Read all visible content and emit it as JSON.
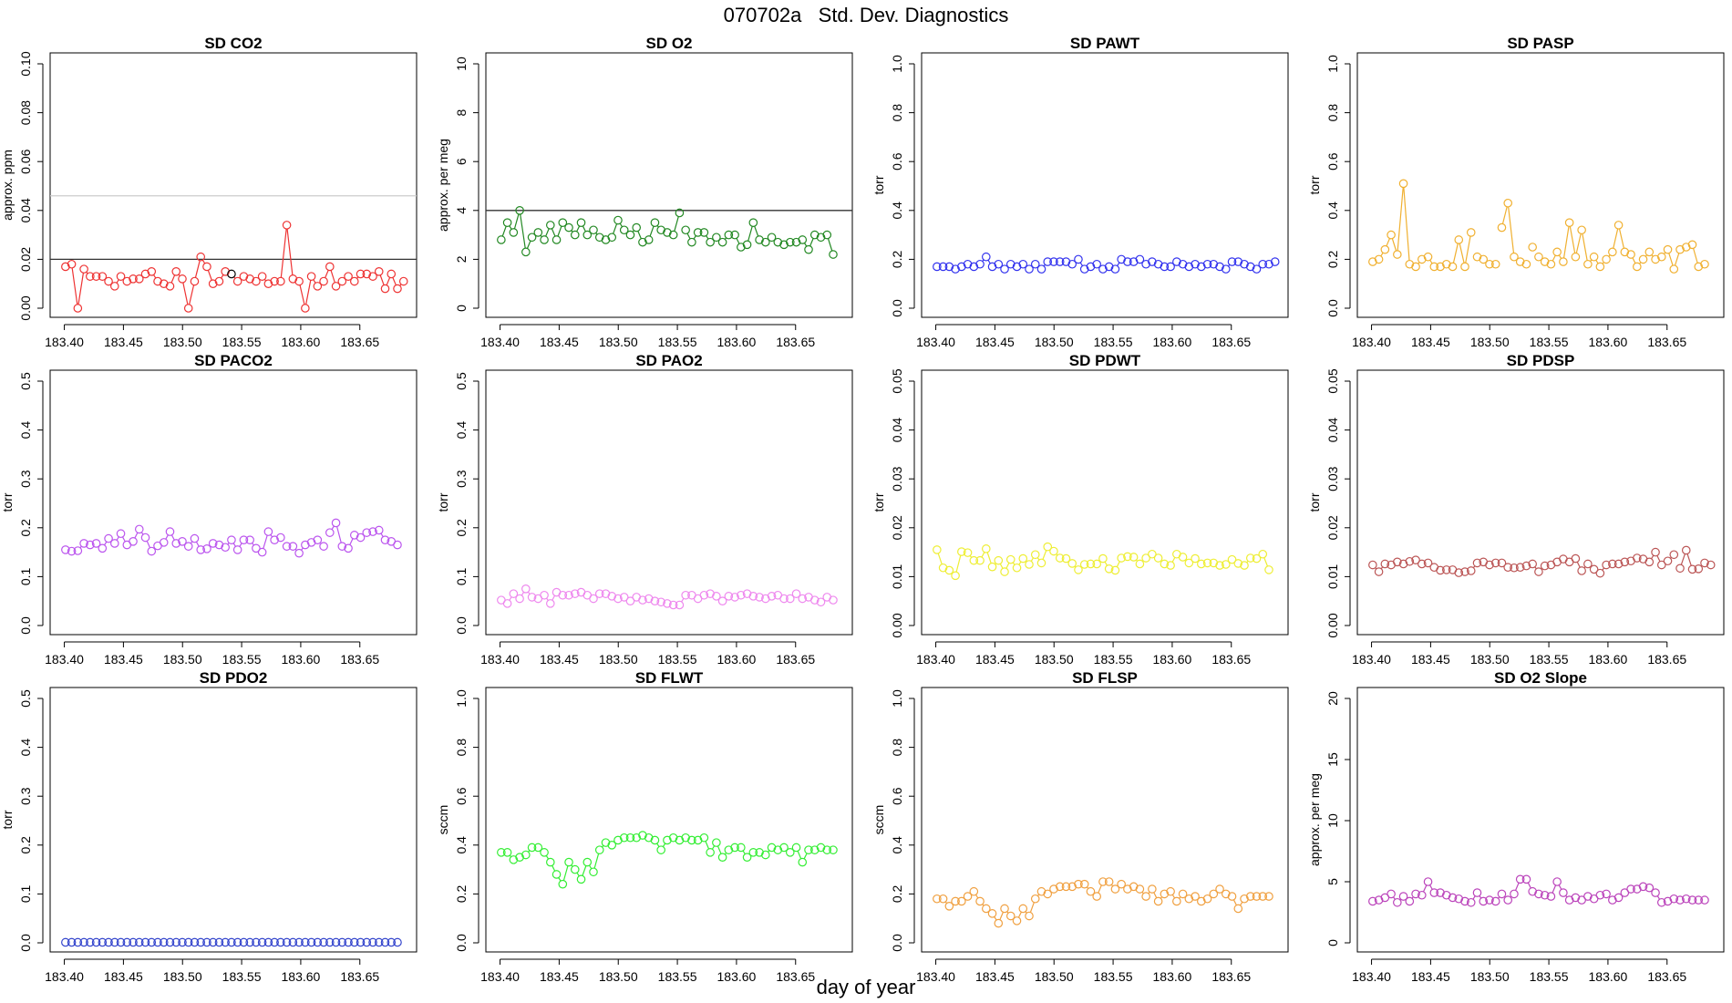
{
  "page": {
    "title": "070702a   Std. Dev. Diagnostics",
    "xlabel": "day of year"
  },
  "x_ticks": [
    183.4,
    183.45,
    183.5,
    183.55,
    183.6,
    183.65
  ],
  "x_tick_labels": [
    "183.40",
    "183.45",
    "183.50",
    "183.55",
    "183.60",
    "183.65"
  ],
  "chart_data": [
    {
      "type": "line",
      "title": "SD CO2",
      "ylabel": "approx. ppm",
      "ylim": [
        0,
        0.1
      ],
      "yticks": [
        0,
        0.02,
        0.04,
        0.06,
        0.08,
        0.1
      ],
      "ytick_labels": [
        "0.00",
        "0.02",
        "0.04",
        "0.06",
        "0.08",
        "0.10"
      ],
      "color": "#ee3333",
      "hlines": [
        {
          "y": 0.02,
          "color": "#333333"
        },
        {
          "y": 0.046,
          "color": "#cccccc"
        }
      ],
      "highlight": {
        "index": 27,
        "color": "#000000"
      },
      "gaps": [
        26
      ],
      "x_start": 183.401,
      "x_step": 0.0052,
      "values": [
        0.017,
        0.018,
        0.0,
        0.016,
        0.013,
        0.013,
        0.013,
        0.011,
        0.009,
        0.013,
        0.011,
        0.012,
        0.012,
        0.014,
        0.015,
        0.011,
        0.01,
        0.009,
        0.015,
        0.012,
        0.0,
        0.011,
        0.021,
        0.017,
        0.01,
        0.011,
        0.015,
        0.014,
        0.011,
        0.013,
        0.012,
        0.011,
        0.013,
        0.01,
        0.011,
        0.011,
        0.034,
        0.012,
        0.011,
        0.0,
        0.013,
        0.009,
        0.011,
        0.017,
        0.009,
        0.011,
        0.013,
        0.011,
        0.014,
        0.014,
        0.013,
        0.015,
        0.008,
        0.014,
        0.008,
        0.011
      ]
    },
    {
      "type": "line",
      "title": "SD O2",
      "ylabel": "approx. per meg",
      "ylim": [
        0,
        10
      ],
      "yticks": [
        0,
        2,
        4,
        6,
        8,
        10
      ],
      "ytick_labels": [
        "0",
        "2",
        "4",
        "6",
        "8",
        "10"
      ],
      "color": "#228822",
      "hlines": [
        {
          "y": 4,
          "color": "#333333"
        }
      ],
      "gaps": [
        29,
        45
      ],
      "x_start": 183.401,
      "x_step": 0.0052,
      "values": [
        2.8,
        3.5,
        3.1,
        4.0,
        2.3,
        2.9,
        3.1,
        2.8,
        3.4,
        2.8,
        3.5,
        3.3,
        3.0,
        3.5,
        3.0,
        3.2,
        2.9,
        2.8,
        2.9,
        3.6,
        3.2,
        3.0,
        3.3,
        2.7,
        2.8,
        3.5,
        3.2,
        3.1,
        3.0,
        3.9,
        3.2,
        2.7,
        3.1,
        3.1,
        2.7,
        2.9,
        2.7,
        3.0,
        3.0,
        2.5,
        2.6,
        3.5,
        2.8,
        2.7,
        2.9,
        2.7,
        2.6,
        2.7,
        2.7,
        2.8,
        2.4,
        3.0,
        2.9,
        3.0,
        2.2
      ]
    },
    {
      "type": "line",
      "title": "SD PAWT",
      "ylabel": "torr",
      "ylim": [
        0,
        1.0
      ],
      "yticks": [
        0,
        0.2,
        0.4,
        0.6,
        0.8,
        1.0
      ],
      "ytick_labels": [
        "0.0",
        "0.2",
        "0.4",
        "0.6",
        "0.8",
        "1.0"
      ],
      "color": "#3333ee",
      "hlines": [],
      "gaps": [],
      "x_start": 183.401,
      "x_step": 0.0052,
      "values": [
        0.17,
        0.17,
        0.17,
        0.16,
        0.17,
        0.18,
        0.17,
        0.18,
        0.21,
        0.17,
        0.18,
        0.16,
        0.18,
        0.17,
        0.18,
        0.16,
        0.18,
        0.16,
        0.19,
        0.19,
        0.19,
        0.19,
        0.18,
        0.2,
        0.16,
        0.17,
        0.18,
        0.16,
        0.17,
        0.16,
        0.2,
        0.19,
        0.19,
        0.2,
        0.18,
        0.19,
        0.18,
        0.17,
        0.17,
        0.19,
        0.18,
        0.17,
        0.18,
        0.17,
        0.18,
        0.18,
        0.17,
        0.16,
        0.19,
        0.19,
        0.18,
        0.17,
        0.16,
        0.18,
        0.18,
        0.19
      ]
    },
    {
      "type": "line",
      "title": "SD PASP",
      "ylabel": "torr",
      "ylim": [
        0,
        1.0
      ],
      "yticks": [
        0,
        0.2,
        0.4,
        0.6,
        0.8,
        1.0
      ],
      "ytick_labels": [
        "0.0",
        "0.2",
        "0.4",
        "0.6",
        "0.8",
        "1.0"
      ],
      "color": "#f0b030",
      "hlines": [],
      "gaps": [
        16,
        17,
        20,
        24,
        25,
        26,
        46
      ],
      "x_start": 183.401,
      "x_step": 0.0052,
      "values": [
        0.19,
        0.2,
        0.24,
        0.3,
        0.22,
        0.51,
        0.18,
        0.17,
        0.2,
        0.21,
        0.17,
        0.17,
        0.18,
        0.17,
        0.28,
        0.17,
        0.31,
        0.21,
        0.2,
        0.18,
        0.18,
        0.33,
        0.43,
        0.21,
        0.19,
        0.18,
        0.25,
        0.21,
        0.19,
        0.18,
        0.23,
        0.19,
        0.35,
        0.21,
        0.32,
        0.18,
        0.21,
        0.17,
        0.2,
        0.23,
        0.34,
        0.23,
        0.22,
        0.17,
        0.2,
        0.23,
        0.2,
        0.21,
        0.24,
        0.16,
        0.24,
        0.25,
        0.26,
        0.17,
        0.18
      ]
    },
    {
      "type": "line",
      "title": "SD PACO2",
      "ylabel": "torr",
      "ylim": [
        0,
        0.5
      ],
      "yticks": [
        0,
        0.1,
        0.2,
        0.3,
        0.4,
        0.5
      ],
      "ytick_labels": [
        "0.0",
        "0.1",
        "0.2",
        "0.3",
        "0.4",
        "0.5"
      ],
      "color": "#bb55ee",
      "hlines": [],
      "gaps": [
        35,
        41,
        42
      ],
      "x_start": 183.401,
      "x_step": 0.0052,
      "values": [
        0.155,
        0.152,
        0.153,
        0.168,
        0.165,
        0.168,
        0.158,
        0.178,
        0.168,
        0.188,
        0.165,
        0.172,
        0.197,
        0.18,
        0.152,
        0.163,
        0.17,
        0.192,
        0.168,
        0.172,
        0.162,
        0.178,
        0.155,
        0.157,
        0.168,
        0.165,
        0.16,
        0.175,
        0.155,
        0.175,
        0.175,
        0.158,
        0.15,
        0.192,
        0.175,
        0.18,
        0.162,
        0.162,
        0.148,
        0.165,
        0.17,
        0.175,
        0.162,
        0.19,
        0.21,
        0.162,
        0.158,
        0.185,
        0.18,
        0.19,
        0.192,
        0.195,
        0.175,
        0.172,
        0.165
      ]
    },
    {
      "type": "line",
      "title": "SD PAO2",
      "ylabel": "torr",
      "ylim": [
        0,
        0.5
      ],
      "yticks": [
        0,
        0.1,
        0.2,
        0.3,
        0.4,
        0.5
      ],
      "ytick_labels": [
        "0.0",
        "0.1",
        "0.2",
        "0.3",
        "0.4",
        "0.5"
      ],
      "color": "#ee88ee",
      "hlines": [],
      "gaps": [],
      "x_start": 183.401,
      "x_step": 0.0052,
      "values": [
        0.052,
        0.045,
        0.065,
        0.055,
        0.075,
        0.058,
        0.055,
        0.062,
        0.045,
        0.068,
        0.062,
        0.062,
        0.065,
        0.068,
        0.062,
        0.055,
        0.065,
        0.065,
        0.06,
        0.055,
        0.058,
        0.05,
        0.058,
        0.052,
        0.055,
        0.05,
        0.048,
        0.045,
        0.042,
        0.042,
        0.062,
        0.062,
        0.055,
        0.062,
        0.065,
        0.06,
        0.05,
        0.06,
        0.058,
        0.062,
        0.065,
        0.06,
        0.058,
        0.055,
        0.06,
        0.062,
        0.055,
        0.055,
        0.065,
        0.055,
        0.058,
        0.052,
        0.048,
        0.058,
        0.052
      ]
    },
    {
      "type": "line",
      "title": "SD PDWT",
      "ylabel": "torr",
      "ylim": [
        0,
        0.05
      ],
      "yticks": [
        0,
        0.01,
        0.02,
        0.03,
        0.04,
        0.05
      ],
      "ytick_labels": [
        "0.00",
        "0.01",
        "0.02",
        "0.03",
        "0.04",
        "0.05"
      ],
      "color": "#eeee33",
      "hlines": [],
      "gaps": [],
      "x_start": 183.401,
      "x_step": 0.0052,
      "values": [
        0.0155,
        0.0118,
        0.0113,
        0.0102,
        0.0151,
        0.0149,
        0.0133,
        0.0133,
        0.0157,
        0.012,
        0.0133,
        0.011,
        0.0135,
        0.0118,
        0.0137,
        0.0125,
        0.0145,
        0.0128,
        0.0161,
        0.0152,
        0.0138,
        0.0137,
        0.0127,
        0.0114,
        0.0125,
        0.0126,
        0.0126,
        0.0137,
        0.0116,
        0.0113,
        0.0138,
        0.0141,
        0.014,
        0.0126,
        0.0138,
        0.0146,
        0.0138,
        0.0126,
        0.0123,
        0.0146,
        0.014,
        0.0128,
        0.0137,
        0.0126,
        0.0128,
        0.0128,
        0.0123,
        0.0125,
        0.0135,
        0.0127,
        0.0123,
        0.0138,
        0.0137,
        0.0146,
        0.0114
      ]
    },
    {
      "type": "line",
      "title": "SD PDSP",
      "ylabel": "torr",
      "ylim": [
        0,
        0.05
      ],
      "yticks": [
        0,
        0.01,
        0.02,
        0.03,
        0.04,
        0.05
      ],
      "ytick_labels": [
        "0.00",
        "0.01",
        "0.02",
        "0.03",
        "0.04",
        "0.05"
      ],
      "color": "#bb5555",
      "hlines": [],
      "gaps": [
        49
      ],
      "x_start": 183.401,
      "x_step": 0.0052,
      "values": [
        0.0124,
        0.011,
        0.0126,
        0.0124,
        0.013,
        0.0126,
        0.0131,
        0.0134,
        0.0126,
        0.0128,
        0.0119,
        0.0113,
        0.0114,
        0.0114,
        0.0108,
        0.011,
        0.0112,
        0.0128,
        0.013,
        0.0124,
        0.0128,
        0.0128,
        0.0119,
        0.0118,
        0.0119,
        0.0122,
        0.0126,
        0.011,
        0.0122,
        0.0124,
        0.013,
        0.0136,
        0.013,
        0.0137,
        0.0112,
        0.0126,
        0.0115,
        0.0107,
        0.0124,
        0.0126,
        0.0126,
        0.013,
        0.0132,
        0.0138,
        0.0136,
        0.013,
        0.015,
        0.0124,
        0.0132,
        0.0145,
        0.0117,
        0.0154,
        0.0115,
        0.0116,
        0.0128,
        0.0124
      ]
    },
    {
      "type": "line",
      "title": "SD PDO2",
      "ylabel": "torr",
      "ylim": [
        0,
        0.5
      ],
      "yticks": [
        0,
        0.1,
        0.2,
        0.3,
        0.4,
        0.5
      ],
      "ytick_labels": [
        "0.0",
        "0.1",
        "0.2",
        "0.3",
        "0.4",
        "0.5"
      ],
      "color": "#3344cc",
      "hlines": [],
      "gaps": [],
      "x_start": 183.401,
      "x_step": 0.0052,
      "values": [
        0.001,
        0.001,
        0.001,
        0.001,
        0.001,
        0.001,
        0.001,
        0.001,
        0.001,
        0.001,
        0.001,
        0.001,
        0.001,
        0.001,
        0.001,
        0.001,
        0.001,
        0.001,
        0.001,
        0.001,
        0.001,
        0.001,
        0.001,
        0.001,
        0.001,
        0.001,
        0.001,
        0.001,
        0.001,
        0.001,
        0.001,
        0.001,
        0.001,
        0.001,
        0.001,
        0.001,
        0.001,
        0.001,
        0.001,
        0.001,
        0.001,
        0.001,
        0.001,
        0.001,
        0.001,
        0.001,
        0.001,
        0.001,
        0.001,
        0.001,
        0.001,
        0.001,
        0.001,
        0.001,
        0.001
      ]
    },
    {
      "type": "line",
      "title": "SD FLWT",
      "ylabel": "sccm",
      "ylim": [
        0,
        1.0
      ],
      "yticks": [
        0,
        0.2,
        0.4,
        0.6,
        0.8,
        1.0
      ],
      "ytick_labels": [
        "0.0",
        "0.2",
        "0.4",
        "0.6",
        "0.8",
        "1.0"
      ],
      "color": "#33ee33",
      "hlines": [],
      "gaps": [],
      "x_start": 183.401,
      "x_step": 0.0052,
      "values": [
        0.37,
        0.37,
        0.34,
        0.35,
        0.36,
        0.39,
        0.39,
        0.37,
        0.33,
        0.28,
        0.24,
        0.33,
        0.3,
        0.26,
        0.33,
        0.29,
        0.38,
        0.41,
        0.4,
        0.42,
        0.43,
        0.43,
        0.43,
        0.44,
        0.43,
        0.42,
        0.38,
        0.42,
        0.43,
        0.42,
        0.43,
        0.42,
        0.42,
        0.43,
        0.37,
        0.41,
        0.35,
        0.38,
        0.39,
        0.39,
        0.35,
        0.37,
        0.37,
        0.36,
        0.39,
        0.38,
        0.39,
        0.37,
        0.39,
        0.33,
        0.38,
        0.38,
        0.39,
        0.38,
        0.38
      ]
    },
    {
      "type": "line",
      "title": "SD FLSP",
      "ylabel": "sccm",
      "ylim": [
        0,
        1.0
      ],
      "yticks": [
        0,
        0.2,
        0.4,
        0.6,
        0.8,
        1.0
      ],
      "ytick_labels": [
        "0.0",
        "0.2",
        "0.4",
        "0.6",
        "0.8",
        "1.0"
      ],
      "color": "#f0a040",
      "hlines": [],
      "gaps": [],
      "x_start": 183.401,
      "x_step": 0.0052,
      "values": [
        0.18,
        0.18,
        0.15,
        0.17,
        0.17,
        0.19,
        0.21,
        0.17,
        0.14,
        0.12,
        0.08,
        0.14,
        0.11,
        0.09,
        0.14,
        0.11,
        0.18,
        0.21,
        0.2,
        0.22,
        0.23,
        0.23,
        0.23,
        0.24,
        0.24,
        0.21,
        0.19,
        0.25,
        0.25,
        0.22,
        0.24,
        0.22,
        0.23,
        0.22,
        0.19,
        0.22,
        0.17,
        0.2,
        0.21,
        0.17,
        0.2,
        0.18,
        0.19,
        0.17,
        0.18,
        0.2,
        0.22,
        0.2,
        0.19,
        0.14,
        0.18,
        0.19,
        0.19,
        0.19,
        0.19
      ]
    },
    {
      "type": "line",
      "title": "SD O2 Slope",
      "ylabel": "approx. per meg",
      "ylim": [
        0,
        20
      ],
      "yticks": [
        0,
        5,
        10,
        15,
        20
      ],
      "ytick_labels": [
        "0",
        "5",
        "10",
        "15",
        "20"
      ],
      "color": "#bb44bb",
      "hlines": [],
      "gaps": [],
      "x_start": 183.401,
      "x_step": 0.0052,
      "values": [
        3.4,
        3.5,
        3.7,
        4.0,
        3.3,
        3.8,
        3.4,
        4.0,
        3.9,
        5.0,
        4.1,
        4.1,
        3.9,
        3.7,
        3.6,
        3.4,
        3.3,
        4.1,
        3.4,
        3.5,
        3.4,
        4.0,
        3.5,
        4.0,
        5.2,
        5.2,
        4.2,
        4.0,
        3.9,
        3.8,
        5.0,
        4.1,
        3.5,
        3.7,
        3.5,
        3.8,
        3.6,
        3.9,
        4.0,
        3.5,
        3.7,
        4.1,
        4.4,
        4.4,
        4.6,
        4.5,
        4.1,
        3.3,
        3.4,
        3.6,
        3.5,
        3.6,
        3.5,
        3.5,
        3.5
      ]
    }
  ]
}
